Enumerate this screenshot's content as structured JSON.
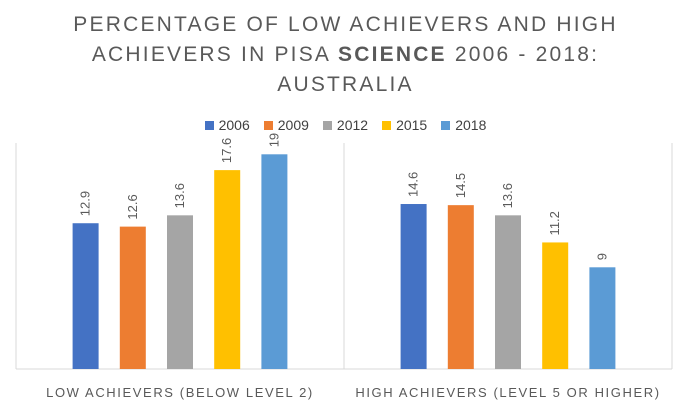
{
  "title": {
    "line1": "PERCENTAGE OF LOW ACHIEVERS AND HIGH",
    "line2_pre": "ACHIEVERS IN PISA ",
    "line2_bold": "SCIENCE",
    "line2_post": " 2006 - 2018:",
    "line3": "AUSTRALIA"
  },
  "chart_data": {
    "type": "bar",
    "title": "PERCENTAGE OF LOW ACHIEVERS AND HIGH ACHIEVERS IN PISA SCIENCE 2006 - 2018: AUSTRALIA",
    "categories": [
      "LOW ACHIEVERS (BELOW LEVEL 2)",
      "HIGH ACHIEVERS (LEVEL 5 OR HIGHER)"
    ],
    "series": [
      {
        "name": "2006",
        "color": "#4472C4",
        "values": [
          12.9,
          14.6
        ]
      },
      {
        "name": "2009",
        "color": "#ED7D31",
        "values": [
          12.6,
          14.5
        ]
      },
      {
        "name": "2012",
        "color": "#A5A5A5",
        "values": [
          13.6,
          13.6
        ]
      },
      {
        "name": "2015",
        "color": "#FFC000",
        "values": [
          17.6,
          11.2
        ]
      },
      {
        "name": "2018",
        "color": "#5B9BD5",
        "values": [
          19,
          9
        ]
      }
    ],
    "ylim": [
      0,
      20
    ],
    "legend": "top",
    "grid": false,
    "data_labels": true
  }
}
